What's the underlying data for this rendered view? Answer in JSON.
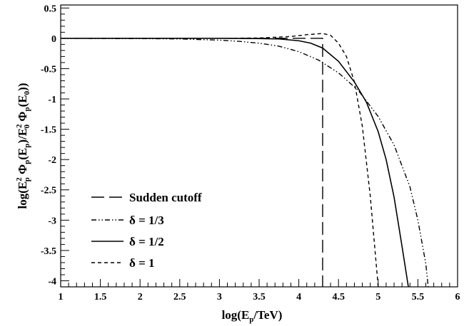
{
  "chart_data": {
    "type": "line",
    "title": "",
    "xlim": [
      1,
      6
    ],
    "ylim": [
      -4.1,
      0.55
    ],
    "x_ticks": [
      "1",
      "1.5",
      "2",
      "2.5",
      "3",
      "3.5",
      "4",
      "4.5",
      "5",
      "5.5",
      "6"
    ],
    "y_ticks": [
      "0.5",
      "0",
      "-0.5",
      "-1",
      "-1.5",
      "-2",
      "-2.5",
      "-3",
      "-3.5",
      "-4"
    ],
    "xlabel": {
      "prefix": "log(E",
      "sub": "p",
      "suffix": "/TeV)"
    },
    "ylabel": {
      "p1": "log(E",
      "p1_sup": "2",
      "p1_sub": "p",
      "p2": " Φ",
      "p2_sub": "p",
      "p3": "(E",
      "p3_sub": "p",
      "p4": ")/E",
      "p4_sup": "2",
      "p4_sub": "0",
      "p5": " Φ",
      "p5_sub": "p",
      "p6": "(E",
      "p6_sub": "0",
      "p7": "))"
    },
    "grid": false,
    "legend_position": "bottom-left",
    "series": [
      {
        "name": "Sudden cutoff",
        "dash": "long-dash",
        "x": [
          1,
          4.3,
          4.3
        ],
        "y": [
          0,
          0,
          -4.1
        ]
      },
      {
        "name": "δ = 1/3",
        "dash": "dash-dot-dot",
        "x": [
          1,
          2,
          2.5,
          3,
          3.25,
          3.5,
          3.75,
          4,
          4.25,
          4.5,
          4.75,
          5,
          5.2,
          5.4,
          5.5,
          5.6,
          5.63
        ],
        "y": [
          0,
          -0.005,
          -0.01,
          -0.03,
          -0.05,
          -0.08,
          -0.13,
          -0.22,
          -0.36,
          -0.57,
          -0.86,
          -1.29,
          -1.76,
          -2.45,
          -3.0,
          -3.72,
          -4.1
        ]
      },
      {
        "name": "δ = 1/2",
        "dash": "solid",
        "x": [
          1,
          3,
          3.5,
          3.75,
          4,
          4.15,
          4.3,
          4.5,
          4.7,
          4.85,
          5,
          5.1,
          5.2,
          5.3,
          5.38
        ],
        "y": [
          0,
          0,
          -0.005,
          -0.01,
          -0.04,
          -0.08,
          -0.16,
          -0.38,
          -0.72,
          -1.05,
          -1.54,
          -2.0,
          -2.62,
          -3.43,
          -4.1
        ]
      },
      {
        "name": "δ = 1",
        "dash": "dashed",
        "x": [
          1,
          3,
          3.5,
          3.9,
          4.1,
          4.3,
          4.4,
          4.5,
          4.6,
          4.7,
          4.8,
          4.9,
          4.95,
          5.0
        ],
        "y": [
          0,
          0,
          0.005,
          0.03,
          0.06,
          0.08,
          0.05,
          -0.08,
          -0.3,
          -0.72,
          -1.45,
          -2.6,
          -3.35,
          -4.1
        ]
      }
    ]
  }
}
